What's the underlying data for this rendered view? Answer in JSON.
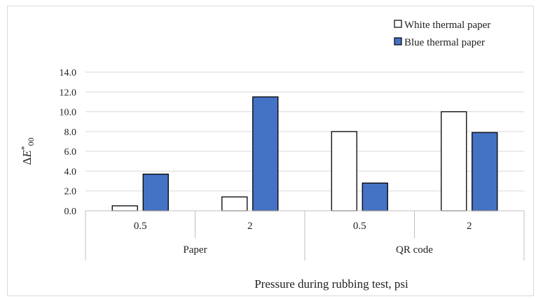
{
  "chart_data": {
    "type": "bar",
    "title": "",
    "ylabel": "ΔE*00",
    "ylabel_parts": {
      "delta": "Δ",
      "var": "E",
      "sup": "*",
      "sub": "00"
    },
    "xlabel": "Pressure during rubbing test, psi",
    "ylim": [
      0,
      14
    ],
    "yticks": [
      "0.0",
      "2.0",
      "4.0",
      "6.0",
      "8.0",
      "10.0",
      "12.0",
      "14.0"
    ],
    "grid": true,
    "legend_position": "top-right",
    "groups": [
      {
        "label": "Paper",
        "categories": [
          "0.5",
          "2"
        ]
      },
      {
        "label": "QR code",
        "categories": [
          "0.5",
          "2"
        ]
      }
    ],
    "categories": [
      "0.5",
      "2",
      "0.5",
      "2"
    ],
    "series": [
      {
        "name": "White thermal paper",
        "color": "#ffffff",
        "values": [
          0.5,
          1.4,
          8.0,
          10.0
        ]
      },
      {
        "name": "Blue thermal paper",
        "color": "#4472c4",
        "values": [
          3.7,
          11.5,
          2.8,
          7.9
        ]
      }
    ]
  }
}
